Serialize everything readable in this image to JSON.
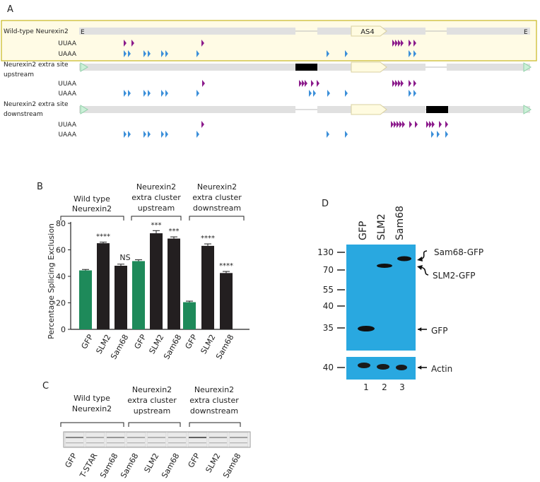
{
  "panels": {
    "a": {
      "letter": "A",
      "constructs": [
        {
          "name": "Wild-type Neurexin2",
          "name_lines": [
            "Wild-type Neurexin2"
          ],
          "exon_label": "AS4",
          "e_left": "E",
          "e_right": "E"
        },
        {
          "name": "Neurexin2 extra site upstream",
          "name_lines": [
            "Neurexin2 extra site",
            "upstream"
          ]
        },
        {
          "name": "Neurexin2 extra site downstream",
          "name_lines": [
            "Neurexin2 extra site",
            "downstream"
          ]
        }
      ],
      "motifs": [
        "UUAA",
        "UAAA"
      ],
      "colors": {
        "uuaa": "#8b1a8b",
        "uaaa": "#3b8fd9",
        "highlight_fill": "#fffbe5",
        "highlight_border": "#c8b820",
        "exon_fill": "#fffbe0",
        "black_box": "#000000"
      }
    },
    "b": {
      "letter": "B",
      "groups": [
        {
          "lines": [
            "Wild type",
            "Neurexin2"
          ]
        },
        {
          "lines": [
            "Neurexin2",
            "extra cluster",
            "upstream"
          ]
        },
        {
          "lines": [
            "Neurexin2",
            "extra cluster",
            "downstream"
          ]
        }
      ]
    },
    "c": {
      "letter": "C",
      "groups": [
        {
          "lines": [
            "Wild type",
            "Neurexin2"
          ]
        },
        {
          "lines": [
            "Neurexin2",
            "extra cluster",
            "upstream"
          ]
        },
        {
          "lines": [
            "Neurexin2",
            "extra cluster",
            "downstream"
          ]
        }
      ],
      "lanes": [
        "GFP",
        "T-STAR",
        "Sam68",
        "Sam68",
        "SLM2",
        "Sam68",
        "GFP",
        "SLM2",
        "Sam68"
      ]
    },
    "d": {
      "letter": "D",
      "lanes": [
        "GFP",
        "SLM2",
        "Sam68"
      ],
      "mw_markers": [
        "130",
        "70",
        "55",
        "40",
        "35"
      ],
      "actin_marker": "40",
      "band_labels": [
        "Sam68-GFP",
        "SLM2-GFP",
        "GFP"
      ],
      "actin_label": "Actin",
      "lane_numbers": [
        "1",
        "2",
        "3"
      ],
      "blot_color": "#29a8e0"
    }
  },
  "chart_data": {
    "type": "bar",
    "ylabel": "Percentage Splicing Exclusion",
    "ylim": [
      0,
      80
    ],
    "yticks": [
      0,
      20,
      40,
      60,
      80
    ],
    "categories": [
      "GFP",
      "SLM2",
      "Sam68",
      "GFP",
      "SLM2",
      "Sam68",
      "GFP",
      "SLM2",
      "Sam68"
    ],
    "values": [
      44.5,
      65,
      48,
      51.5,
      72.5,
      68.5,
      20.5,
      63,
      42.5
    ],
    "errors": [
      0.7,
      0.8,
      1.2,
      1.0,
      2.0,
      1.3,
      0.8,
      1.5,
      1.2
    ],
    "colors": [
      "#1e8a5a",
      "#231f20",
      "#231f20",
      "#1e8a5a",
      "#231f20",
      "#231f20",
      "#1e8a5a",
      "#231f20",
      "#231f20"
    ],
    "significance": [
      "",
      "****",
      "NS",
      "",
      "***",
      "***",
      "",
      "****",
      "****"
    ]
  }
}
